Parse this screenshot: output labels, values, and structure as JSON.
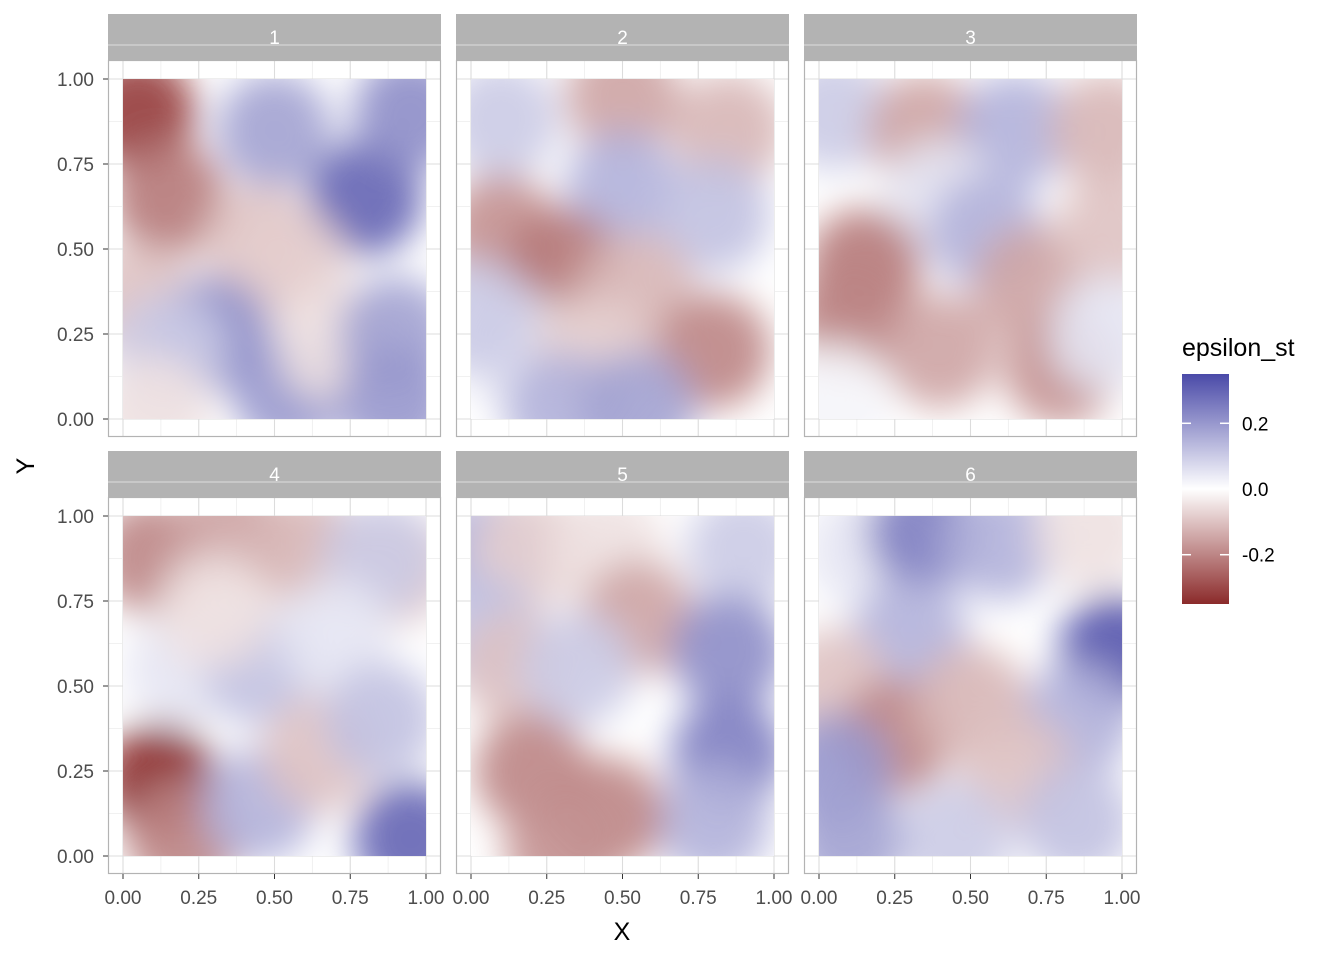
{
  "chart_data": {
    "type": "heatmap",
    "facet_variable_labels": [
      "1",
      "2",
      "3",
      "4",
      "5",
      "6"
    ],
    "xlabel": "X",
    "ylabel": "Y",
    "xlim": [
      0,
      1
    ],
    "ylim": [
      0,
      1
    ],
    "x_ticks": [
      "0.00",
      "0.25",
      "0.50",
      "0.75",
      "1.00"
    ],
    "y_ticks": [
      "0.00",
      "0.25",
      "0.50",
      "0.75",
      "1.00"
    ],
    "grid": true,
    "legend": {
      "title": "epsilon_st",
      "position": "right",
      "breaks": [
        "0.2",
        "0.0",
        "-0.2"
      ],
      "break_values": [
        0.2,
        0.0,
        -0.2
      ],
      "range": [
        -0.35,
        0.35
      ]
    },
    "colors": {
      "low": "#8b2a2a",
      "mid": "#ffffff",
      "high": "#4a4aa8",
      "strip_fill": "#b3b3b3",
      "grid_major": "#dcdcdc",
      "grid_minor": "#ededed"
    },
    "panels": [
      {
        "label": "1",
        "blobs": [
          {
            "x": 0.05,
            "y": 0.9,
            "v": -0.32
          },
          {
            "x": 0.15,
            "y": 0.65,
            "v": -0.22
          },
          {
            "x": 0.05,
            "y": 0.35,
            "v": -0.1
          },
          {
            "x": 0.5,
            "y": 0.85,
            "v": 0.18
          },
          {
            "x": 0.8,
            "y": 0.65,
            "v": 0.3
          },
          {
            "x": 0.95,
            "y": 0.9,
            "v": 0.22
          },
          {
            "x": 0.45,
            "y": 0.52,
            "v": -0.1
          },
          {
            "x": 0.55,
            "y": 0.45,
            "v": -0.08
          },
          {
            "x": 0.3,
            "y": 0.25,
            "v": 0.22
          },
          {
            "x": 0.15,
            "y": 0.2,
            "v": 0.1
          },
          {
            "x": 0.55,
            "y": 0.08,
            "v": 0.2
          },
          {
            "x": 0.7,
            "y": 0.22,
            "v": -0.05
          },
          {
            "x": 0.9,
            "y": 0.25,
            "v": 0.18
          },
          {
            "x": 0.9,
            "y": 0.05,
            "v": 0.2
          },
          {
            "x": 0.1,
            "y": 0.02,
            "v": -0.05
          }
        ]
      },
      {
        "label": "2",
        "blobs": [
          {
            "x": 0.1,
            "y": 0.88,
            "v": 0.1
          },
          {
            "x": 0.5,
            "y": 0.95,
            "v": -0.15
          },
          {
            "x": 0.85,
            "y": 0.85,
            "v": -0.12
          },
          {
            "x": 0.5,
            "y": 0.68,
            "v": 0.15
          },
          {
            "x": 0.8,
            "y": 0.6,
            "v": 0.12
          },
          {
            "x": 0.1,
            "y": 0.55,
            "v": -0.18
          },
          {
            "x": 0.3,
            "y": 0.45,
            "v": -0.22
          },
          {
            "x": 0.55,
            "y": 0.38,
            "v": -0.12
          },
          {
            "x": 0.15,
            "y": 0.2,
            "v": 0.05
          },
          {
            "x": 0.4,
            "y": 0.2,
            "v": -0.08
          },
          {
            "x": 0.8,
            "y": 0.2,
            "v": -0.2
          },
          {
            "x": 0.3,
            "y": 0.03,
            "v": 0.15
          },
          {
            "x": 0.55,
            "y": 0.03,
            "v": 0.18
          },
          {
            "x": 0.02,
            "y": 0.3,
            "v": 0.1
          }
        ]
      },
      {
        "label": "3",
        "blobs": [
          {
            "x": 0.05,
            "y": 0.9,
            "v": 0.1
          },
          {
            "x": 0.35,
            "y": 0.85,
            "v": -0.15
          },
          {
            "x": 0.65,
            "y": 0.85,
            "v": 0.15
          },
          {
            "x": 0.95,
            "y": 0.85,
            "v": -0.12
          },
          {
            "x": 0.4,
            "y": 0.65,
            "v": 0.05
          },
          {
            "x": 0.55,
            "y": 0.55,
            "v": 0.15
          },
          {
            "x": 0.15,
            "y": 0.45,
            "v": -0.22
          },
          {
            "x": 0.1,
            "y": 0.3,
            "v": -0.2
          },
          {
            "x": 0.4,
            "y": 0.2,
            "v": -0.15
          },
          {
            "x": 0.7,
            "y": 0.4,
            "v": -0.15
          },
          {
            "x": 0.8,
            "y": 0.15,
            "v": -0.18
          },
          {
            "x": 0.97,
            "y": 0.55,
            "v": -0.1
          },
          {
            "x": 0.95,
            "y": 0.25,
            "v": 0.05
          },
          {
            "x": 0.05,
            "y": 0.05,
            "v": 0.02
          }
        ]
      },
      {
        "label": "4",
        "blobs": [
          {
            "x": 0.1,
            "y": 0.88,
            "v": -0.2
          },
          {
            "x": 0.35,
            "y": 0.95,
            "v": -0.15
          },
          {
            "x": 0.6,
            "y": 0.9,
            "v": -0.12
          },
          {
            "x": 0.9,
            "y": 0.85,
            "v": -0.1
          },
          {
            "x": 0.85,
            "y": 0.88,
            "v": 0.1
          },
          {
            "x": 0.2,
            "y": 0.55,
            "v": 0.05
          },
          {
            "x": 0.45,
            "y": 0.55,
            "v": 0.12
          },
          {
            "x": 0.7,
            "y": 0.65,
            "v": 0.05
          },
          {
            "x": 0.12,
            "y": 0.22,
            "v": -0.35
          },
          {
            "x": 0.2,
            "y": 0.05,
            "v": -0.2
          },
          {
            "x": 0.45,
            "y": 0.15,
            "v": 0.15
          },
          {
            "x": 0.65,
            "y": 0.3,
            "v": -0.1
          },
          {
            "x": 0.85,
            "y": 0.4,
            "v": 0.12
          },
          {
            "x": 0.95,
            "y": 0.05,
            "v": 0.3
          },
          {
            "x": 0.3,
            "y": 0.72,
            "v": -0.05
          }
        ]
      },
      {
        "label": "5",
        "blobs": [
          {
            "x": 0.05,
            "y": 0.9,
            "v": 0.15
          },
          {
            "x": 0.2,
            "y": 0.9,
            "v": -0.08
          },
          {
            "x": 0.45,
            "y": 0.9,
            "v": -0.05
          },
          {
            "x": 0.55,
            "y": 0.7,
            "v": -0.15
          },
          {
            "x": 0.9,
            "y": 0.9,
            "v": 0.1
          },
          {
            "x": 0.85,
            "y": 0.6,
            "v": 0.22
          },
          {
            "x": 0.85,
            "y": 0.3,
            "v": 0.25
          },
          {
            "x": 0.8,
            "y": 0.1,
            "v": 0.15
          },
          {
            "x": 0.05,
            "y": 0.65,
            "v": 0.12
          },
          {
            "x": 0.15,
            "y": 0.55,
            "v": -0.1
          },
          {
            "x": 0.35,
            "y": 0.55,
            "v": 0.1
          },
          {
            "x": 0.2,
            "y": 0.25,
            "v": -0.2
          },
          {
            "x": 0.45,
            "y": 0.12,
            "v": -0.2
          },
          {
            "x": 0.3,
            "y": 0.02,
            "v": -0.18
          }
        ]
      },
      {
        "label": "6",
        "blobs": [
          {
            "x": 0.15,
            "y": 0.9,
            "v": 0.05
          },
          {
            "x": 0.35,
            "y": 0.95,
            "v": 0.25
          },
          {
            "x": 0.6,
            "y": 0.92,
            "v": 0.15
          },
          {
            "x": 0.9,
            "y": 0.95,
            "v": -0.05
          },
          {
            "x": 0.98,
            "y": 0.6,
            "v": 0.33
          },
          {
            "x": 0.85,
            "y": 0.4,
            "v": 0.15
          },
          {
            "x": 0.3,
            "y": 0.65,
            "v": 0.15
          },
          {
            "x": 0.05,
            "y": 0.5,
            "v": -0.1
          },
          {
            "x": 0.25,
            "y": 0.35,
            "v": -0.2
          },
          {
            "x": 0.5,
            "y": 0.45,
            "v": -0.12
          },
          {
            "x": 0.65,
            "y": 0.25,
            "v": -0.1
          },
          {
            "x": 0.05,
            "y": 0.25,
            "v": 0.2
          },
          {
            "x": 0.1,
            "y": 0.05,
            "v": 0.18
          },
          {
            "x": 0.45,
            "y": 0.05,
            "v": 0.1
          },
          {
            "x": 0.85,
            "y": 0.1,
            "v": 0.12
          }
        ]
      }
    ]
  }
}
